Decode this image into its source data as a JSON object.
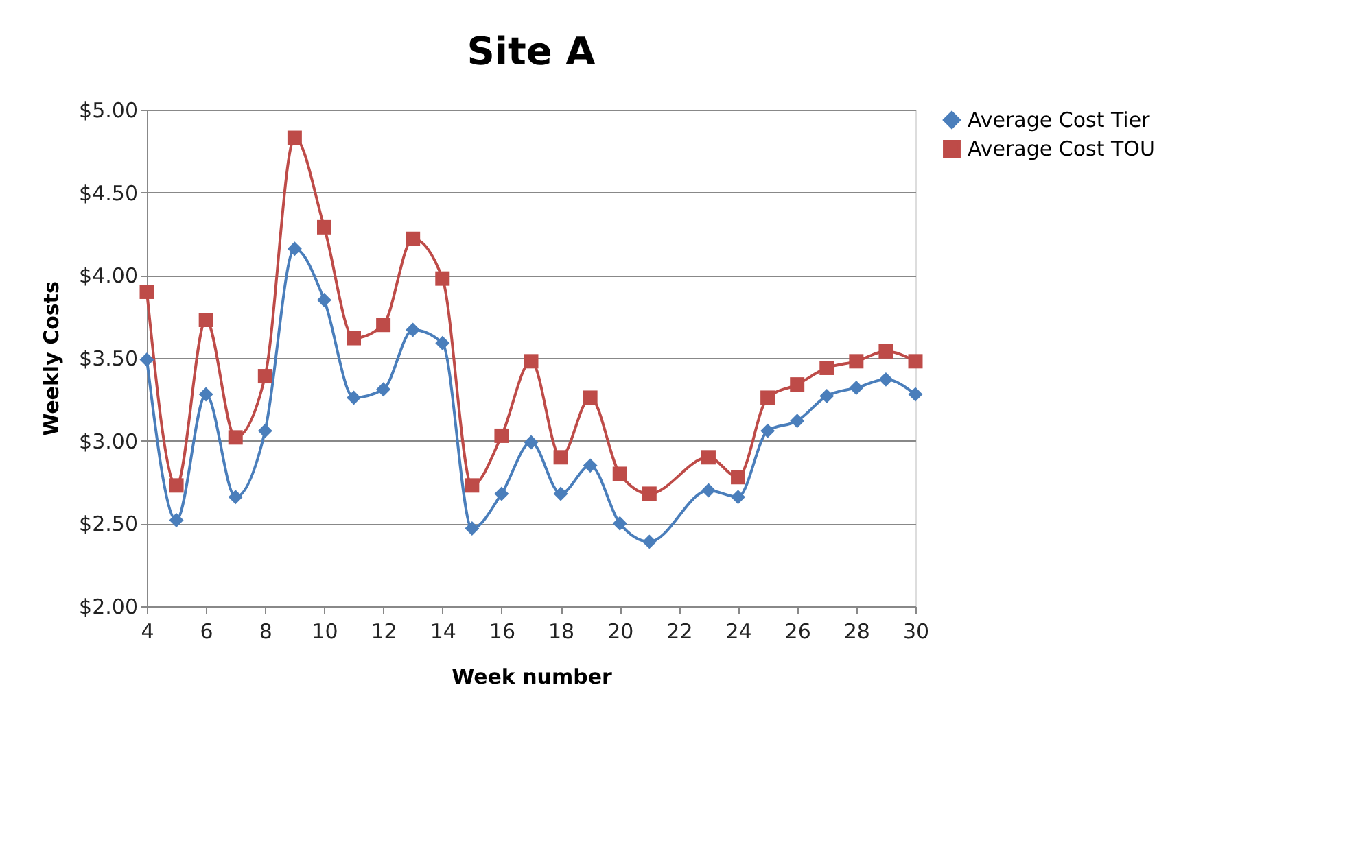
{
  "chart_data": {
    "type": "line",
    "title": "Site A",
    "xlabel": "Week number",
    "ylabel": "Weekly Costs",
    "xlim": [
      4,
      30
    ],
    "xticks": [
      4,
      6,
      8,
      10,
      12,
      14,
      16,
      18,
      20,
      22,
      24,
      26,
      28,
      30
    ],
    "ylim": [
      2,
      5
    ],
    "yticks": [
      {
        "value": 2,
        "label": "$2.00"
      },
      {
        "value": 2.5,
        "label": "$2.50"
      },
      {
        "value": 3,
        "label": "$3.00"
      },
      {
        "value": 3.5,
        "label": "$3.50"
      },
      {
        "value": 4,
        "label": "$4.00"
      },
      {
        "value": 4.5,
        "label": "$4.50"
      },
      {
        "value": 5,
        "label": "$5.00"
      }
    ],
    "grid": "y",
    "legend": "right",
    "line_style": "solid",
    "series": [
      {
        "name": "Average Cost Tier",
        "color": "#4a7ebb",
        "marker": "diamond",
        "x": [
          4,
          5,
          6,
          7,
          8,
          9,
          10,
          11,
          12,
          13,
          14,
          15,
          16,
          17,
          18,
          19,
          20,
          21,
          23,
          24,
          25,
          26,
          27,
          28,
          29,
          30
        ],
        "values": [
          3.49,
          2.52,
          3.28,
          2.66,
          3.06,
          4.16,
          3.85,
          3.26,
          3.31,
          3.67,
          3.59,
          2.47,
          2.68,
          2.99,
          2.68,
          2.85,
          2.5,
          2.39,
          2.7,
          2.66,
          3.06,
          3.12,
          3.27,
          3.32,
          3.37,
          3.28
        ]
      },
      {
        "name": "Average Cost TOU",
        "color": "#be4b48",
        "marker": "square",
        "x": [
          4,
          5,
          6,
          7,
          8,
          9,
          10,
          11,
          12,
          13,
          14,
          15,
          16,
          17,
          18,
          19,
          20,
          21,
          23,
          24,
          25,
          26,
          27,
          28,
          29,
          30
        ],
        "values": [
          3.9,
          2.73,
          3.73,
          3.02,
          3.39,
          4.83,
          4.29,
          3.62,
          3.7,
          4.22,
          3.98,
          2.73,
          3.03,
          3.48,
          2.9,
          3.26,
          2.8,
          2.68,
          2.9,
          2.78,
          3.26,
          3.34,
          3.44,
          3.48,
          3.54,
          3.48
        ]
      }
    ]
  }
}
